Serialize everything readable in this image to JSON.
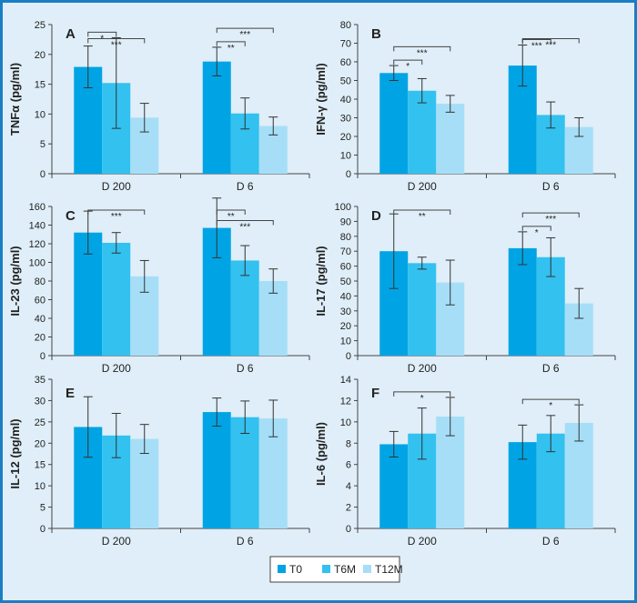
{
  "legend": {
    "items": [
      {
        "label": "T0",
        "color": "#00a4e4"
      },
      {
        "label": "T6M",
        "color": "#33c1f0"
      },
      {
        "label": "T12M",
        "color": "#a6def7"
      }
    ]
  },
  "chart_data": [
    {
      "type": "bar",
      "panel": "A",
      "ylabel": "TNFα (pg/ml)",
      "categories": [
        "D 200",
        "D 6"
      ],
      "ylim": [
        0,
        25
      ],
      "yticks": [
        0,
        5,
        10,
        15,
        20,
        25
      ],
      "series": [
        {
          "name": "T0",
          "values": [
            17.9,
            18.8
          ],
          "err": [
            3.5,
            2.4
          ]
        },
        {
          "name": "T6M",
          "values": [
            15.2,
            10.1
          ],
          "err": [
            7.6,
            2.6
          ]
        },
        {
          "name": "T12M",
          "values": [
            9.4,
            8.0
          ],
          "err": [
            2.4,
            1.5
          ]
        }
      ],
      "significance": [
        {
          "cat": 0,
          "from": 0,
          "to": 1,
          "label": "*"
        },
        {
          "cat": 0,
          "from": 0,
          "to": 2,
          "label": "***"
        },
        {
          "cat": 1,
          "from": 0,
          "to": 1,
          "label": "**"
        },
        {
          "cat": 1,
          "from": 0,
          "to": 2,
          "label": "***"
        }
      ]
    },
    {
      "type": "bar",
      "panel": "B",
      "ylabel": "IFN-γ (pg/ml)",
      "categories": [
        "D 200",
        "D 6"
      ],
      "ylim": [
        0,
        80
      ],
      "yticks": [
        0,
        10,
        20,
        30,
        40,
        50,
        60,
        70,
        80
      ],
      "series": [
        {
          "name": "T0",
          "values": [
            54,
            58
          ],
          "err": [
            4,
            11
          ]
        },
        {
          "name": "T6M",
          "values": [
            44.5,
            31.5
          ],
          "err": [
            6.5,
            7
          ]
        },
        {
          "name": "T12M",
          "values": [
            37.5,
            25
          ],
          "err": [
            4.5,
            5
          ]
        }
      ],
      "significance": [
        {
          "cat": 0,
          "from": 0,
          "to": 1,
          "label": "*"
        },
        {
          "cat": 0,
          "from": 0,
          "to": 2,
          "label": "***"
        },
        {
          "cat": 1,
          "from": 0,
          "to": 1,
          "label": "***"
        },
        {
          "cat": 1,
          "from": 0,
          "to": 2,
          "label": "***"
        }
      ]
    },
    {
      "type": "bar",
      "panel": "C",
      "ylabel": "IL-23 (pg/ml)",
      "categories": [
        "D 200",
        "D 6"
      ],
      "ylim": [
        0,
        160
      ],
      "yticks": [
        0,
        20,
        40,
        60,
        80,
        100,
        120,
        140,
        160
      ],
      "series": [
        {
          "name": "T0",
          "values": [
            132,
            137
          ],
          "err": [
            23,
            32
          ]
        },
        {
          "name": "T6M",
          "values": [
            121,
            102
          ],
          "err": [
            11,
            16
          ]
        },
        {
          "name": "T12M",
          "values": [
            85,
            80
          ],
          "err": [
            17,
            13
          ]
        }
      ],
      "significance": [
        {
          "cat": 0,
          "from": 0,
          "to": 2,
          "label": "***"
        },
        {
          "cat": 1,
          "from": 0,
          "to": 1,
          "label": "**"
        },
        {
          "cat": 1,
          "from": 0,
          "to": 2,
          "label": "***"
        }
      ]
    },
    {
      "type": "bar",
      "panel": "D",
      "ylabel": "IL-17 (pg/ml)",
      "categories": [
        "D 200",
        "D 6"
      ],
      "ylim": [
        0,
        100
      ],
      "yticks": [
        0,
        10,
        20,
        30,
        40,
        50,
        60,
        70,
        80,
        90,
        100
      ],
      "series": [
        {
          "name": "T0",
          "values": [
            70,
            72
          ],
          "err": [
            25,
            11
          ]
        },
        {
          "name": "T6M",
          "values": [
            62,
            66
          ],
          "err": [
            4,
            13
          ]
        },
        {
          "name": "T12M",
          "values": [
            49,
            35
          ],
          "err": [
            15,
            10
          ]
        }
      ],
      "significance": [
        {
          "cat": 0,
          "from": 0,
          "to": 2,
          "label": "**"
        },
        {
          "cat": 1,
          "from": 0,
          "to": 1,
          "label": "*"
        },
        {
          "cat": 1,
          "from": 0,
          "to": 2,
          "label": "***"
        }
      ]
    },
    {
      "type": "bar",
      "panel": "E",
      "ylabel": "IL-12 (pg/ml)",
      "categories": [
        "D 200",
        "D 6"
      ],
      "ylim": [
        0,
        35
      ],
      "yticks": [
        0,
        5,
        10,
        15,
        20,
        25,
        30,
        35
      ],
      "series": [
        {
          "name": "T0",
          "values": [
            23.8,
            27.3
          ],
          "err": [
            7.1,
            3.3
          ]
        },
        {
          "name": "T6M",
          "values": [
            21.8,
            26.1
          ],
          "err": [
            5.2,
            3.8
          ]
        },
        {
          "name": "T12M",
          "values": [
            21.0,
            25.8
          ],
          "err": [
            3.4,
            4.3
          ]
        }
      ],
      "significance": []
    },
    {
      "type": "bar",
      "panel": "F",
      "ylabel": "IL-6 (pg/ml)",
      "categories": [
        "D 200",
        "D 6"
      ],
      "ylim": [
        0,
        14
      ],
      "yticks": [
        0,
        2,
        4,
        6,
        8,
        10,
        12,
        14
      ],
      "series": [
        {
          "name": "T0",
          "values": [
            7.9,
            8.1
          ],
          "err": [
            1.2,
            1.6
          ]
        },
        {
          "name": "T6M",
          "values": [
            8.9,
            8.9
          ],
          "err": [
            2.4,
            1.7
          ]
        },
        {
          "name": "T12M",
          "values": [
            10.5,
            9.9
          ],
          "err": [
            1.8,
            1.7
          ]
        }
      ],
      "significance": [
        {
          "cat": 0,
          "from": 0,
          "to": 2,
          "label": "*"
        },
        {
          "cat": 1,
          "from": 0,
          "to": 2,
          "label": "*"
        }
      ]
    }
  ]
}
